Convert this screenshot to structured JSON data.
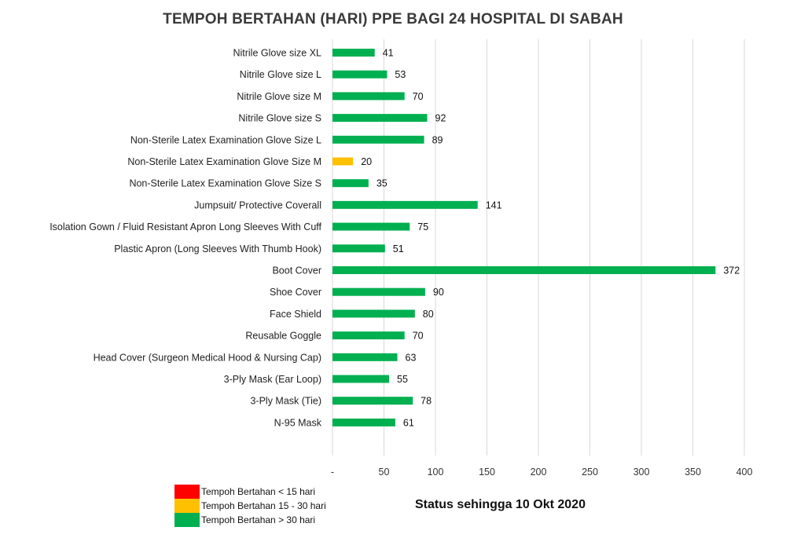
{
  "chart_data": {
    "type": "bar",
    "orientation": "horizontal",
    "title": "TEMPOH BERTAHAN (HARI) PPE BAGI 24 HOSPITAL DI SABAH",
    "categories": [
      "Nitrile Glove size XL",
      "Nitrile Glove size L",
      "Nitrile Glove size M",
      "Nitrile Glove size S",
      "Non-Sterile Latex Examination Glove Size L",
      "Non-Sterile Latex Examination Glove Size M",
      "Non-Sterile Latex Examination Glove Size S",
      "Jumpsuit/ Protective Coverall",
      "Isolation Gown / Fluid Resistant Apron Long Sleeves With Cuff",
      "Plastic Apron (Long Sleeves With Thumb Hook)",
      "Boot Cover",
      "Shoe Cover",
      "Face Shield",
      "Reusable Goggle",
      "Head Cover (Surgeon Medical Hood & Nursing Cap)",
      "3-Ply Mask (Ear Loop)",
      "3-Ply Mask (Tie)",
      "N-95 Mask"
    ],
    "values": [
      41,
      53,
      70,
      92,
      89,
      20,
      35,
      141,
      75,
      51,
      372,
      90,
      80,
      70,
      63,
      55,
      78,
      61
    ],
    "xlim": [
      0,
      400
    ],
    "ticks": [
      0,
      50,
      100,
      150,
      200,
      250,
      300,
      350,
      400
    ],
    "tick_labels": [
      "-",
      "50",
      "100",
      "150",
      "200",
      "250",
      "300",
      "350",
      "400"
    ],
    "grid": true,
    "colors": {
      "red": "#ff0000",
      "amber": "#ffc000",
      "green": "#00b050"
    },
    "thresholds": {
      "red_below": 15,
      "green_above": 30
    },
    "legend": [
      {
        "label": "Tempoh Bertahan < 15 hari",
        "color": "#ff0000"
      },
      {
        "label": "Tempoh Bertahan 15 - 30 hari",
        "color": "#ffc000"
      },
      {
        "label": "Tempoh Bertahan > 30 hari",
        "color": "#00b050"
      }
    ],
    "legend_position": "bottom-left"
  },
  "status_note": "Status sehingga 10 Okt 2020"
}
